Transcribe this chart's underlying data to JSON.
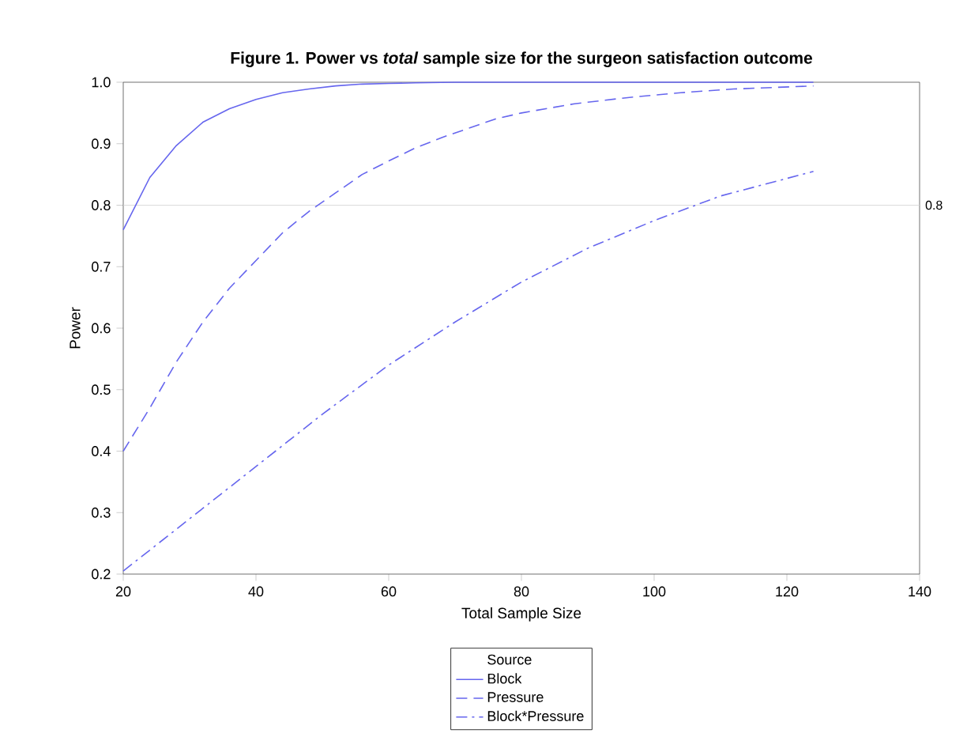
{
  "chart_data": {
    "type": "line",
    "title": "Figure 1. Power vs *total* sample size for the surgeon satisfaction outcome",
    "xlabel": "Total Sample Size",
    "ylabel": "Power",
    "legend_title": "Source",
    "legend": "bottom",
    "grid": false,
    "marker": "none",
    "xlim": [
      20,
      140
    ],
    "xticks": [
      20,
      40,
      60,
      80,
      100,
      120,
      140
    ],
    "ylim": [
      0.2,
      1.0
    ],
    "yticks": [
      0.2,
      0.3,
      0.4,
      0.5,
      0.6,
      0.7,
      0.8,
      0.9,
      {
        "value": 1.0,
        "label": "1.0"
      }
    ],
    "ref_lines": [
      {
        "axis": "y",
        "value": 0.8,
        "label": "0.8",
        "color": "#d3d3d3"
      }
    ],
    "series": [
      {
        "name": "Block",
        "color": "#6666ee",
        "line_style": "solid",
        "x": [
          20,
          24,
          28,
          32,
          36,
          40,
          44,
          48,
          52,
          56,
          60,
          64,
          70,
          124
        ],
        "values": [
          0.76,
          0.845,
          0.897,
          0.935,
          0.957,
          0.972,
          0.983,
          0.989,
          0.994,
          0.997,
          0.998,
          0.999,
          1.0,
          1.0
        ]
      },
      {
        "name": "Pressure",
        "color": "#6666ee",
        "line_style": "dashed",
        "x": [
          20,
          24,
          28,
          32,
          36,
          40,
          44,
          48,
          52,
          56,
          60,
          64,
          68,
          72,
          76,
          80,
          88,
          96,
          104,
          112,
          124
        ],
        "values": [
          0.4,
          0.47,
          0.545,
          0.61,
          0.665,
          0.71,
          0.755,
          0.79,
          0.82,
          0.85,
          0.872,
          0.893,
          0.91,
          0.925,
          0.94,
          0.95,
          0.965,
          0.975,
          0.983,
          0.989,
          0.994
        ]
      },
      {
        "name": "Block*Pressure",
        "color": "#6666ee",
        "line_style": "dashdot",
        "x": [
          20,
          30,
          40,
          50,
          60,
          70,
          80,
          90,
          100,
          110,
          124
        ],
        "values": [
          0.205,
          0.29,
          0.375,
          0.46,
          0.54,
          0.61,
          0.675,
          0.73,
          0.775,
          0.815,
          0.855
        ]
      }
    ]
  }
}
